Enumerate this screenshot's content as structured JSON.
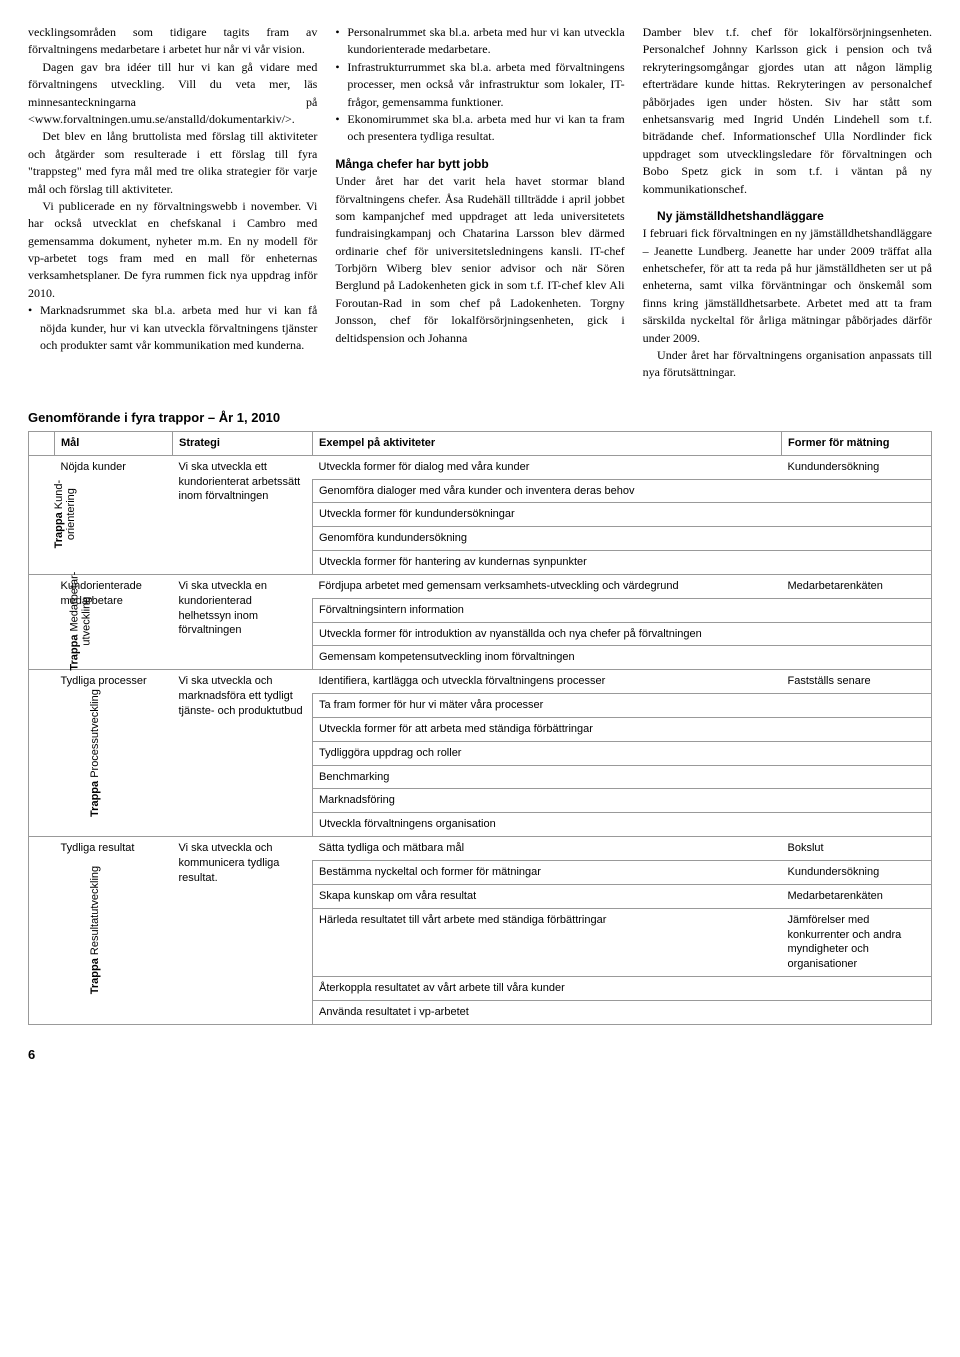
{
  "columns": {
    "col1": {
      "p1": "vecklingsområden som tidigare tagits fram av förvaltningens medarbetare i arbetet hur når vi vår vision.",
      "p2": "Dagen gav bra idéer till hur vi kan gå vidare med förvaltningens utveckling. Vill du veta mer, läs minnesanteckningarna på <www.forvaltningen.umu.se/anstalld/dokumentarkiv/>.",
      "p3": "Det blev en lång bruttolista med förslag till aktiviteter och åtgärder som resulterade i ett förslag till fyra \"trappsteg\" med fyra mål med tre olika strategier för varje mål och förslag till aktiviteter.",
      "p4": "Vi publicerade en ny förvaltningswebb i november. Vi har också utvecklat en chefskanal i Cambro med gemensamma dokument, nyheter m.m. En ny modell för vp-arbetet togs fram med en mall för enheternas verksamhetsplaner. De fyra rummen fick nya uppdrag inför 2010.",
      "b1": "Marknadsrummet ska bl.a. arbeta med hur vi kan få nöjda kunder, hur vi kan utveckla förvaltningens tjänster och produkter samt vår kommunikation med kunderna."
    },
    "col2": {
      "b1": "Personalrummet ska bl.a. arbeta med hur vi kan utveckla kundorienterade medarbetare.",
      "b2": "Infrastrukturrummet ska bl.a. arbeta med förvaltningens processer, men också vår infrastruktur som lokaler, IT-frågor, gemensamma funktioner.",
      "b3": "Ekonomirummet ska bl.a. arbeta med hur vi kan ta fram och presentera tydliga resultat.",
      "h1": "Många chefer har bytt jobb",
      "p1": "Under året har det varit hela havet stormar bland förvaltningens chefer. Åsa Rudehäll tillträdde i april jobbet som kampanjchef med uppdraget att leda universitetets fundraisingkampanj och Chatarina Larsson blev därmed ordinarie chef för universitetsledningens kansli. IT-chef Torbjörn Wiberg blev senior advisor och när Sören Berglund på Ladokenheten gick in som t.f. IT-chef klev Ali Foroutan-Rad in som chef på Ladokenheten. Torgny Jonsson, chef för lokalförsörjningsenheten, gick i deltidspension och Johanna"
    },
    "col3": {
      "p1": "Damber blev t.f. chef för lokalförsörjningsenheten. Personalchef Johnny Karlsson gick i pension och två rekryteringsomgångar gjordes utan att någon lämplig efterträdare kunde hittas. Rekryteringen av personalchef påbörjades igen under hösten. Siv har stått som enhetsansvarig med Ingrid Undén Lindehell som t.f. biträdande chef. Informationschef Ulla Nordlinder fick uppdraget som utvecklingsledare för förvaltningen och Bobo Spetz gick in som t.f. i väntan på ny kommunikationschef.",
      "h1": "Ny jämställdhetshandläggare",
      "p2": "I februari fick förvaltningen en ny jämställdhetshandläggare – Jeanette Lundberg. Jeanette har under 2009 träffat alla enhetschefer, för att ta reda på hur jämställdheten ser ut på enheterna, samt vilka förväntningar och önskemål som finns kring jämställdhetsarbete. Arbetet med att ta fram särskilda nyckeltal för årliga mätningar påbörjades därför under 2009.",
      "p3": "Under året har förvaltningens organisation anpassats till nya förutsättningar."
    }
  },
  "table": {
    "title": "Genomförande i fyra trappor – År 1, 2010",
    "headers": {
      "mal": "Mål",
      "strategi": "Strategi",
      "aktiviteter": "Exempel på aktiviteter",
      "former": "Former för mätning"
    },
    "sections": [
      {
        "side": {
          "bold": "Trappa",
          "plain": "Kund-\norientering"
        },
        "mal": "Nöjda kunder",
        "strategi": "Vi ska utveckla ett kundorienterat arbetssätt inom förvaltningen",
        "aktiviteter": [
          "Utveckla former för dialog med våra kunder",
          "Genomföra dialoger med våra kunder och inventera deras behov",
          "Utveckla former för kundundersökningar",
          "Genomföra kundundersökning",
          "Utveckla former för hantering av kundernas synpunkter"
        ],
        "former": [
          "Kundundersökning"
        ]
      },
      {
        "side": {
          "bold": "Trappa",
          "plain": "Medarbetar-\nutveckling"
        },
        "mal": "Kundorienterade medarbetare",
        "strategi": "Vi ska utveckla en kundorienterad helhetssyn inom förvaltningen",
        "aktiviteter": [
          "Fördjupa arbetet med gemensam verksamhets-utveckling och värdegrund",
          "Förvaltningsintern information",
          "Utveckla former för introduktion av nyanställda och nya chefer på förvaltningen",
          "Gemensam kompetensutveckling inom förvaltningen"
        ],
        "former": [
          "Medarbetarenkäten"
        ]
      },
      {
        "side": {
          "bold": "Trappa",
          "plain": "Processutveckling"
        },
        "mal": "Tydliga processer",
        "strategi": "Vi ska utveckla och marknadsföra ett tydligt tjänste- och produktutbud",
        "aktiviteter": [
          "Identifiera, kartlägga och utveckla förvaltningens processer",
          "Ta fram former för hur vi mäter våra processer",
          "Utveckla former för att arbeta med ständiga förbättringar",
          "Tydliggöra uppdrag och roller",
          "Benchmarking",
          "Marknadsföring",
          "Utveckla förvaltningens organisation"
        ],
        "former": [
          "Fastställs senare"
        ]
      },
      {
        "side": {
          "bold": "Trappa",
          "plain": "Resultatutveckling"
        },
        "mal": "Tydliga resultat",
        "strategi": "Vi ska utveckla och kommunicera tydliga resultat.",
        "aktiviteter": [
          "Sätta tydliga och mätbara mål",
          "Bestämma nyckeltal och former för mätningar",
          "Skapa kunskap om våra resultat",
          "Härleda resultatet till vårt arbete med ständiga förbättringar",
          "Återkoppla resultatet av vårt arbete till våra kunder",
          "Använda resultatet i vp-arbetet"
        ],
        "former": [
          "Bokslut",
          "Kundundersökning",
          "Medarbetarenkäten",
          "Jämförelser med konkurrenter och andra myndigheter och organisationer"
        ]
      }
    ]
  },
  "pageNumber": "6"
}
